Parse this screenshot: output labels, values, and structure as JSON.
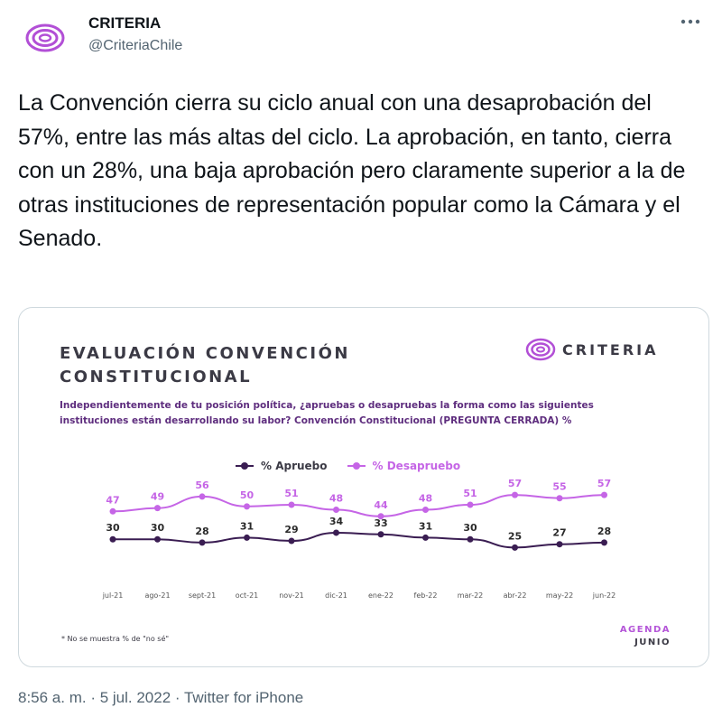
{
  "tweet": {
    "author_name": "CRITERIA",
    "author_handle": "@CriteriaChile",
    "more_icon": "more-horizontal-icon",
    "text": "La Convención cierra su ciclo anual con una desaprobación del 57%, entre las más altas del ciclo. La aprobación, en tanto, cierra con un 28%, una baja aprobación pero claramente superior a la de otras instituciones de representación popular como la Cámara y el Senado.",
    "meta": "8:56 a. m. · 5 jul. 2022 · Twitter for iPhone"
  },
  "card": {
    "title_line1": "EVALUACIÓN CONVENCIÓN",
    "title_line2": "CONSTITUCIONAL",
    "subtitle": "Independientemente de tu posición política, ¿apruebas o desapruebas la forma como las siguientes instituciones están desarrollando su labor? Convención Constitucional (PREGUNTA CERRADA) %",
    "brand": "CRITERIA",
    "footnote": "* No se muestra % de \"no sé\"",
    "agenda_line1": "AGENDA",
    "agenda_line2": "JUNIO"
  },
  "colors": {
    "aprueba": "#3a1d52",
    "desaprueba": "#c565e6",
    "brand_ring": "#b24fd6"
  },
  "chart_data": {
    "type": "line",
    "categories": [
      "jul-21",
      "ago-21",
      "sept-21",
      "oct-21",
      "nov-21",
      "dic-21",
      "ene-22",
      "feb-22",
      "mar-22",
      "abr-22",
      "may-22",
      "jun-22"
    ],
    "series": [
      {
        "name": "% Apruebo",
        "values": [
          30,
          30,
          28,
          31,
          29,
          34,
          33,
          31,
          30,
          25,
          27,
          28
        ]
      },
      {
        "name": "% Desapruebo",
        "values": [
          47,
          49,
          56,
          50,
          51,
          48,
          44,
          48,
          51,
          57,
          55,
          57
        ]
      }
    ],
    "legend_position": "top-center",
    "grid": false
  }
}
